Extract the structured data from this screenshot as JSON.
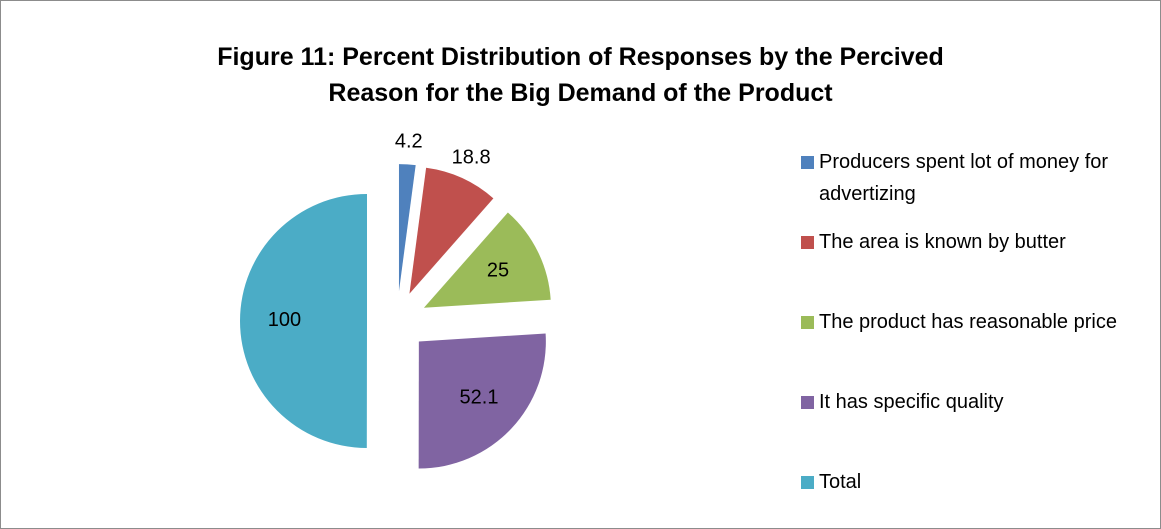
{
  "chart_data": {
    "type": "pie",
    "title": "Figure 11: Percent Distribution of Responses by the Percived Reason for the Big Demand of the Product",
    "categories": [
      "Producers spent lot of money for advertizing",
      "The area is known by butter",
      "The product has reasonable price",
      "It has specific quality",
      "Total"
    ],
    "values": [
      4.2,
      18.8,
      25,
      52.1,
      100
    ],
    "colors": [
      "#4f81bd",
      "#c0504d",
      "#9bbb59",
      "#8064a2",
      "#4bacc6"
    ],
    "exploded": true,
    "legend": "right"
  }
}
